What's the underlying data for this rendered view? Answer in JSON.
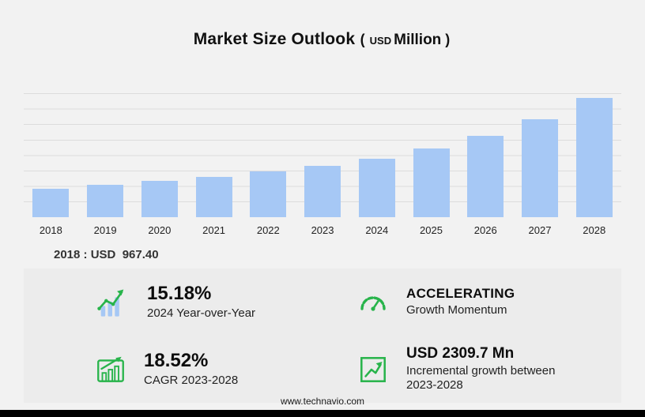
{
  "header": {
    "title": "Market Size Outlook",
    "paren_open": "(",
    "unit_small": "USD",
    "unit_big": "Million",
    "paren_close": ")"
  },
  "annotation": {
    "first_year_label": "2018 : USD  967.40"
  },
  "chart_data": {
    "type": "bar",
    "title": "Market Size Outlook (USD Million)",
    "categories": [
      "2018",
      "2019",
      "2020",
      "2021",
      "2022",
      "2023",
      "2024",
      "2025",
      "2026",
      "2027",
      "2028"
    ],
    "values": [
      967.4,
      1090,
      1225,
      1375,
      1545,
      1730,
      1990,
      2320,
      2750,
      3330,
      4040
    ],
    "ylim": [
      0,
      4200
    ],
    "grid": true,
    "legend": false,
    "bar_color": "#a6c8f5",
    "note": "Only 2018 is labeled on chart (USD 967.40); remaining values estimated from bar heights consistent with 15.18% YoY 2024, 18.52% CAGR 2023-2028 and USD 2309.7 Mn incremental growth"
  },
  "stats": [
    {
      "value": "15.18%",
      "label": "2024 Year-over-Year",
      "icon": "yoy-bars-icon"
    },
    {
      "value": "ACCELERATING",
      "label": "Growth Momentum",
      "icon": "speedometer-icon"
    },
    {
      "value": "18.52%",
      "label": "CAGR 2023-2028",
      "icon": "cagr-chart-icon"
    },
    {
      "value": "USD 2309.7 Mn",
      "label": "Incremental growth between 2023-2028",
      "icon": "incremental-growth-icon"
    }
  ],
  "footer": {
    "website": "www.technavio.com"
  },
  "colors": {
    "bar": "#a6c8f5",
    "accent_green": "#28b44b",
    "background": "#f2f2f2",
    "panel": "#ececec",
    "gridline": "#dcdcdc",
    "footer_bar": "#000000"
  }
}
